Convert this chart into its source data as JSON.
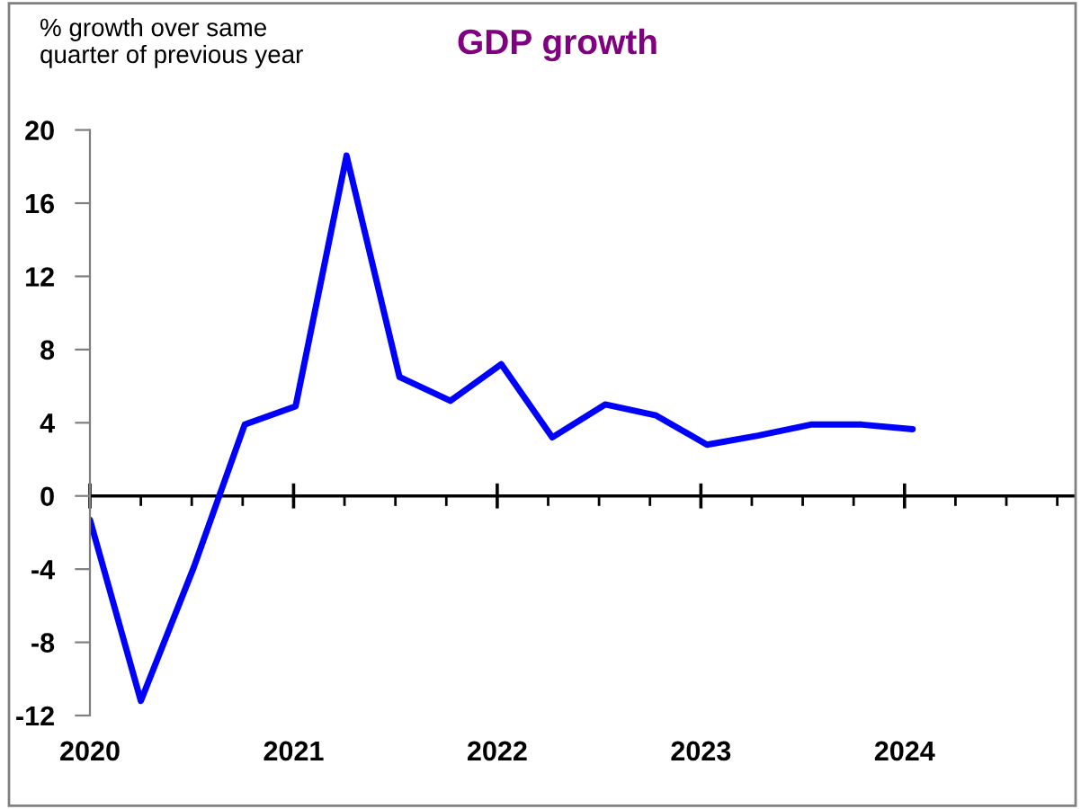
{
  "chart_data": {
    "type": "line",
    "title": "GDP growth",
    "ylabel": "% growth over same\nquarter of previous year",
    "x": [
      2020.0,
      2020.25,
      2020.51,
      2020.76,
      2021.01,
      2021.26,
      2021.52,
      2021.77,
      2022.02,
      2022.27,
      2022.53,
      2022.78,
      2023.03,
      2023.28,
      2023.54,
      2023.79,
      2024.04
    ],
    "series": [
      {
        "color": "#0000ff",
        "values": [
          -1.3,
          -11.2,
          -3.9,
          3.9,
          4.9,
          18.6,
          6.5,
          5.2,
          7.2,
          3.2,
          5.0,
          4.4,
          2.8,
          3.3,
          3.9,
          3.9,
          3.65
        ]
      }
    ],
    "xlim": [
      2020,
      2024.84
    ],
    "xticks": [
      2020,
      {
        "value": 2020.25,
        "label": null
      },
      {
        "value": 2020.5,
        "label": null
      },
      {
        "value": 2020.75,
        "label": null
      },
      2021,
      {
        "value": 2021.25,
        "label": null
      },
      {
        "value": 2021.5,
        "label": null
      },
      {
        "value": 2021.75,
        "label": null
      },
      2022,
      {
        "value": 2022.25,
        "label": null
      },
      {
        "value": 2022.5,
        "label": null
      },
      {
        "value": 2022.75,
        "label": null
      },
      2023,
      {
        "value": 2023.25,
        "label": null
      },
      {
        "value": 2023.5,
        "label": null
      },
      {
        "value": 2023.75,
        "label": null
      },
      2024,
      {
        "value": 2024.25,
        "label": null
      },
      {
        "value": 2024.5,
        "label": null
      },
      {
        "value": 2024.75,
        "label": null
      }
    ],
    "ylim": [
      -12,
      20
    ],
    "yticks": [
      -12,
      -8,
      -4,
      0,
      4,
      8,
      12,
      16,
      20
    ],
    "ref_lines": [
      {
        "axis": "y",
        "value": 0,
        "color": "#000000"
      }
    ],
    "marker": "none",
    "line_style": "solid",
    "grid": false,
    "legend": false
  }
}
